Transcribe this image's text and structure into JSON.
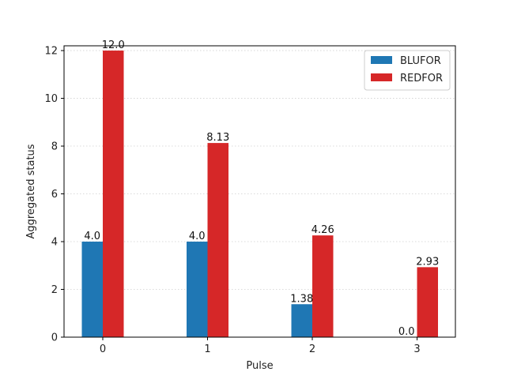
{
  "chart_data": {
    "type": "bar",
    "categories": [
      "0",
      "1",
      "2",
      "3"
    ],
    "series": [
      {
        "name": "BLUFOR",
        "values": [
          4.0,
          4.0,
          1.38,
          0.0
        ],
        "labels": [
          "4.0",
          "4.0",
          "1.38",
          "0.0"
        ],
        "color": "#1f77b4"
      },
      {
        "name": "REDFOR",
        "values": [
          12.0,
          8.13,
          4.26,
          2.93
        ],
        "labels": [
          "12.0",
          "8.13",
          "4.26",
          "2.93"
        ],
        "color": "#d62728"
      }
    ],
    "title": "",
    "xlabel": "Pulse",
    "ylabel": "Aggregated status",
    "ylim": [
      0,
      12.2
    ],
    "yticks": [
      0,
      2,
      4,
      6,
      8,
      10,
      12
    ],
    "grid": "horizontal dotted",
    "legend_position": "top-right"
  }
}
